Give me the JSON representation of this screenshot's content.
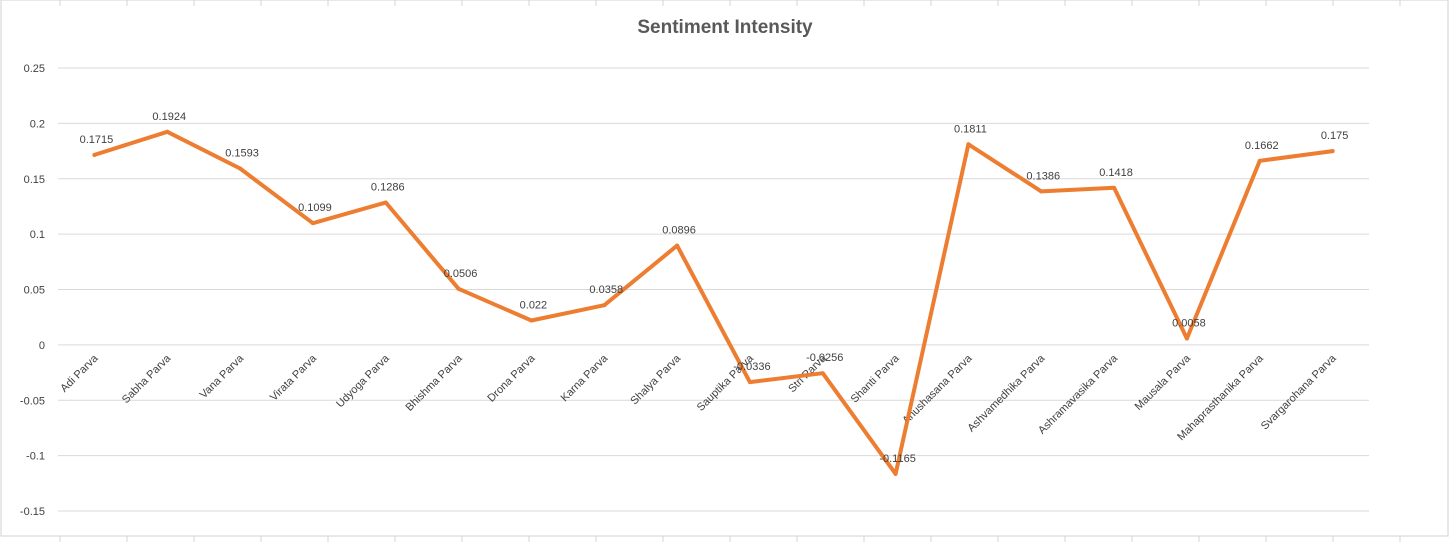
{
  "chart_data": {
    "type": "line",
    "title": "Sentiment Intensity",
    "xlabel": "",
    "ylabel": "",
    "ylim": [
      -0.15,
      0.25
    ],
    "yticks": [
      "0.25",
      "0.2",
      "0.15",
      "0.1",
      "0.05",
      "0",
      "-0.05",
      "-0.1",
      "-0.15"
    ],
    "grid": true,
    "legend": "none",
    "categories": [
      "Adi Parva",
      "Sabha Parva",
      "Vana Parva",
      "Virata Parva",
      "Udyoga Parva",
      "Bhishma Parva",
      "Drona Parva",
      "Karna Parva",
      "Shalya Parva",
      "Sauptika Parva",
      "Stri Parva",
      "Shanti Parva",
      "Anushasana Parva",
      "Ashvamedhika Parva",
      "Ashramavasika Parva",
      "Mausala Parva",
      "Mahaprasthanika Parva",
      "Svargarohana Parva"
    ],
    "series": [
      {
        "values": [
          0.1715,
          0.1924,
          0.1593,
          0.1099,
          0.1286,
          0.0506,
          0.022,
          0.0358,
          0.0896,
          -0.0336,
          -0.0256,
          -0.1165,
          0.1811,
          0.1386,
          0.1418,
          0.0058,
          0.1662,
          0.175
        ],
        "data_labels": [
          "0.1715",
          "0.1924",
          "0.1593",
          "0.1099",
          "0.1286",
          "0.0506",
          "0.022",
          "0.0358",
          "0.0896",
          "-0.0336",
          "-0.0256",
          "-0.1165",
          "0.1811",
          "0.1386",
          "0.1418",
          "0.0058",
          "0.1662",
          "0.175"
        ]
      }
    ],
    "colors": {
      "line": "#ED7D31",
      "grid": "#D9D9D9",
      "text": "#404040",
      "title": "#595959"
    }
  }
}
